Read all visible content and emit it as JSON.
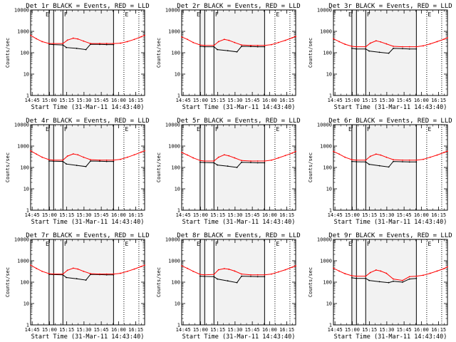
{
  "chart_data": [
    {
      "type": "line",
      "title": "Det 1r BLACK = Events, RED = LLD",
      "xlabel": "Start Time (31-Mar-11 14:43:40)",
      "ylabel": "Counts/sec",
      "x_ticks": [
        "14:45",
        "15:00",
        "15:15",
        "15:30",
        "15:45",
        "16:00",
        "16:15"
      ],
      "y_ticks": [
        "1",
        "10",
        "100",
        "1000",
        "10000"
      ],
      "ylim": [
        1,
        10000
      ],
      "y_scale": "log",
      "x_range_min": [
        0,
        99
      ],
      "vlines_solid_min": [
        16,
        20,
        28,
        72
      ],
      "vlines_dotted_min": [
        81,
        94
      ],
      "interval_marks": [
        "E",
        "F",
        "E"
      ],
      "grid": false,
      "legend": "title",
      "series": [
        {
          "name": "BLACK = Events",
          "color": "#000000",
          "x": [
            16,
            20,
            28,
            31,
            40,
            48,
            52,
            60,
            66,
            72
          ],
          "y": [
            250,
            240,
            230,
            175,
            160,
            140,
            250,
            245,
            240,
            240
          ]
        },
        {
          "name": "RED = LLD",
          "color": "#ff0000",
          "x": [
            0,
            5,
            10,
            16,
            20,
            28,
            32,
            37,
            41,
            46,
            52,
            60,
            66,
            72,
            78,
            84,
            90,
            96,
            99
          ],
          "y": [
            650,
            450,
            330,
            270,
            270,
            270,
            390,
            480,
            440,
            350,
            270,
            270,
            270,
            270,
            280,
            330,
            420,
            560,
            650
          ]
        }
      ]
    },
    {
      "type": "line",
      "title": "Det 2r BLACK = Events, RED = LLD",
      "xlabel": "Start Time (31-Mar-11 14:43:40)",
      "ylabel": "Counts/sec",
      "x_ticks": [
        "14:45",
        "15:00",
        "15:15",
        "15:30",
        "15:45",
        "16:00",
        "16:15"
      ],
      "y_ticks": [
        "1",
        "10",
        "100",
        "1000",
        "10000"
      ],
      "ylim": [
        1,
        10000
      ],
      "y_scale": "log",
      "x_range_min": [
        0,
        99
      ],
      "vlines_solid_min": [
        16,
        20,
        28,
        72
      ],
      "vlines_dotted_min": [
        81,
        94
      ],
      "interval_marks": [
        "E",
        "F",
        "E"
      ],
      "grid": false,
      "legend": "title",
      "series": [
        {
          "name": "BLACK = Events",
          "color": "#000000",
          "x": [
            16,
            20,
            28,
            31,
            40,
            48,
            52,
            60,
            66,
            72
          ],
          "y": [
            200,
            190,
            190,
            140,
            125,
            110,
            200,
            195,
            190,
            190
          ]
        },
        {
          "name": "RED = LLD",
          "color": "#ff0000",
          "x": [
            0,
            5,
            10,
            16,
            20,
            28,
            32,
            37,
            41,
            46,
            52,
            60,
            66,
            72,
            78,
            84,
            90,
            96,
            99
          ],
          "y": [
            550,
            420,
            300,
            230,
            220,
            220,
            330,
            420,
            380,
            300,
            230,
            220,
            220,
            220,
            240,
            300,
            380,
            500,
            580
          ]
        }
      ]
    },
    {
      "type": "line",
      "title": "Det 3r BLACK = Events, RED = LLD",
      "xlabel": "Start Time (31-Mar-11 14:43:40)",
      "ylabel": "Counts/sec",
      "x_ticks": [
        "14:45",
        "15:00",
        "15:15",
        "15:30",
        "15:45",
        "16:00",
        "16:15"
      ],
      "y_ticks": [
        "1",
        "10",
        "100",
        "1000",
        "10000"
      ],
      "ylim": [
        1,
        10000
      ],
      "y_scale": "log",
      "x_range_min": [
        0,
        99
      ],
      "vlines_solid_min": [
        16,
        20,
        28,
        72
      ],
      "vlines_dotted_min": [
        81,
        94
      ],
      "interval_marks": [
        "E",
        "F",
        "E"
      ],
      "grid": false,
      "legend": "title",
      "series": [
        {
          "name": "BLACK = Events",
          "color": "#000000",
          "x": [
            16,
            20,
            28,
            31,
            40,
            48,
            52,
            60,
            66,
            72
          ],
          "y": [
            160,
            150,
            150,
            120,
            105,
            95,
            160,
            155,
            150,
            150
          ]
        },
        {
          "name": "RED = LLD",
          "color": "#ff0000",
          "x": [
            0,
            5,
            10,
            16,
            20,
            28,
            32,
            37,
            41,
            46,
            52,
            60,
            66,
            72,
            78,
            84,
            90,
            96,
            99
          ],
          "y": [
            450,
            330,
            250,
            200,
            190,
            190,
            280,
            360,
            320,
            260,
            200,
            190,
            190,
            190,
            210,
            260,
            330,
            430,
            500
          ]
        }
      ]
    },
    {
      "type": "line",
      "title": "Det 4r BLACK = Events, RED = LLD",
      "xlabel": "Start Time (31-Mar-11 14:43:40)",
      "ylabel": "Counts/sec",
      "x_ticks": [
        "14:45",
        "15:00",
        "15:15",
        "15:30",
        "15:45",
        "16:00",
        "16:15"
      ],
      "y_ticks": [
        "1",
        "10",
        "100",
        "1000",
        "10000"
      ],
      "ylim": [
        1,
        10000
      ],
      "y_scale": "log",
      "x_range_min": [
        0,
        99
      ],
      "vlines_solid_min": [
        16,
        20,
        28,
        72
      ],
      "vlines_dotted_min": [
        81,
        94
      ],
      "interval_marks": [
        "E",
        "F",
        "E"
      ],
      "grid": false,
      "legend": "title",
      "series": [
        {
          "name": "BLACK = Events",
          "color": "#000000",
          "x": [
            16,
            20,
            28,
            31,
            40,
            48,
            52,
            60,
            66,
            72
          ],
          "y": [
            200,
            195,
            190,
            145,
            125,
            110,
            200,
            195,
            190,
            190
          ]
        },
        {
          "name": "RED = LLD",
          "color": "#ff0000",
          "x": [
            0,
            5,
            10,
            16,
            20,
            28,
            32,
            37,
            41,
            46,
            52,
            60,
            66,
            72,
            78,
            84,
            90,
            96,
            99
          ],
          "y": [
            600,
            420,
            300,
            230,
            220,
            220,
            340,
            430,
            390,
            300,
            230,
            220,
            220,
            220,
            240,
            300,
            390,
            520,
            600
          ]
        }
      ]
    },
    {
      "type": "line",
      "title": "Det 5r BLACK = Events, RED = LLD",
      "xlabel": "Start Time (31-Mar-11 14:43:40)",
      "ylabel": "Counts/sec",
      "x_ticks": [
        "14:45",
        "15:00",
        "15:15",
        "15:30",
        "15:45",
        "16:00",
        "16:15"
      ],
      "y_ticks": [
        "1",
        "10",
        "100",
        "1000",
        "10000"
      ],
      "ylim": [
        1,
        10000
      ],
      "y_scale": "log",
      "x_range_min": [
        0,
        99
      ],
      "vlines_solid_min": [
        16,
        20,
        28,
        72
      ],
      "vlines_dotted_min": [
        81,
        94
      ],
      "interval_marks": [
        "E",
        "F",
        "E"
      ],
      "grid": false,
      "legend": "title",
      "series": [
        {
          "name": "BLACK = Events",
          "color": "#000000",
          "x": [
            16,
            20,
            28,
            31,
            40,
            48,
            52,
            60,
            66,
            72
          ],
          "y": [
            175,
            170,
            165,
            130,
            115,
            100,
            175,
            170,
            165,
            165
          ]
        },
        {
          "name": "RED = LLD",
          "color": "#ff0000",
          "x": [
            0,
            5,
            10,
            16,
            20,
            28,
            32,
            37,
            41,
            46,
            52,
            60,
            66,
            72,
            78,
            84,
            90,
            96,
            99
          ],
          "y": [
            500,
            380,
            280,
            210,
            200,
            200,
            300,
            390,
            350,
            280,
            210,
            200,
            200,
            200,
            220,
            280,
            360,
            470,
            560
          ]
        }
      ]
    },
    {
      "type": "line",
      "title": "Det 6r BLACK = Events, RED = LLD",
      "xlabel": "Start Time (31-Mar-11 14:43:40)",
      "ylabel": "Counts/sec",
      "x_ticks": [
        "14:45",
        "15:00",
        "15:15",
        "15:30",
        "15:45",
        "16:00",
        "16:15"
      ],
      "y_ticks": [
        "1",
        "10",
        "100",
        "1000",
        "10000"
      ],
      "ylim": [
        1,
        10000
      ],
      "y_scale": "log",
      "x_range_min": [
        0,
        99
      ],
      "vlines_solid_min": [
        16,
        20,
        28,
        72
      ],
      "vlines_dotted_min": [
        81,
        94
      ],
      "interval_marks": [
        "E",
        "F",
        "E"
      ],
      "grid": false,
      "legend": "title",
      "series": [
        {
          "name": "BLACK = Events",
          "color": "#000000",
          "x": [
            16,
            20,
            28,
            31,
            40,
            48,
            52,
            60,
            66,
            72
          ],
          "y": [
            190,
            185,
            180,
            140,
            120,
            105,
            190,
            185,
            180,
            180
          ]
        },
        {
          "name": "RED = LLD",
          "color": "#ff0000",
          "x": [
            0,
            5,
            10,
            16,
            20,
            28,
            32,
            37,
            41,
            46,
            52,
            60,
            66,
            72,
            78,
            84,
            90,
            96,
            99
          ],
          "y": [
            560,
            420,
            300,
            230,
            220,
            220,
            330,
            420,
            380,
            300,
            230,
            220,
            220,
            220,
            240,
            300,
            380,
            500,
            580
          ]
        }
      ]
    },
    {
      "type": "line",
      "title": "Det 7r BLACK = Events, RED = LLD",
      "xlabel": "Start Time (31-Mar-11 14:43:40)",
      "ylabel": "Counts/sec",
      "x_ticks": [
        "14:45",
        "15:00",
        "15:15",
        "15:30",
        "15:45",
        "16:00",
        "16:15"
      ],
      "y_ticks": [
        "1",
        "10",
        "100",
        "1000",
        "10000"
      ],
      "ylim": [
        1,
        10000
      ],
      "y_scale": "log",
      "x_range_min": [
        0,
        99
      ],
      "vlines_solid_min": [
        16,
        20,
        28,
        72
      ],
      "vlines_dotted_min": [
        81,
        94
      ],
      "interval_marks": [
        "E",
        "F",
        "E"
      ],
      "grid": false,
      "legend": "title",
      "series": [
        {
          "name": "BLACK = Events",
          "color": "#000000",
          "x": [
            16,
            20,
            28,
            31,
            40,
            48,
            52,
            60,
            66,
            72
          ],
          "y": [
            230,
            225,
            220,
            165,
            145,
            125,
            230,
            225,
            220,
            220
          ]
        },
        {
          "name": "RED = LLD",
          "color": "#ff0000",
          "x": [
            0,
            5,
            10,
            16,
            20,
            28,
            32,
            37,
            41,
            46,
            52,
            60,
            66,
            72,
            78,
            84,
            90,
            96,
            99
          ],
          "y": [
            620,
            440,
            320,
            250,
            240,
            240,
            360,
            450,
            410,
            320,
            250,
            240,
            240,
            240,
            260,
            320,
            410,
            540,
            620
          ]
        }
      ]
    },
    {
      "type": "line",
      "title": "Det 8r BLACK = Events, RED = LLD",
      "xlabel": "Start Time (31-Mar-11 14:43:40)",
      "ylabel": "Counts/sec",
      "x_ticks": [
        "14:45",
        "15:00",
        "15:15",
        "15:30",
        "15:45",
        "16:00",
        "16:15"
      ],
      "y_ticks": [
        "1",
        "10",
        "100",
        "1000",
        "10000"
      ],
      "ylim": [
        1,
        10000
      ],
      "y_scale": "log",
      "x_range_min": [
        0,
        99
      ],
      "vlines_solid_min": [
        16,
        20,
        28,
        72
      ],
      "vlines_dotted_min": [
        81,
        94
      ],
      "interval_marks": [
        "E",
        "F",
        "E"
      ],
      "grid": false,
      "legend": "title",
      "series": [
        {
          "name": "BLACK = Events",
          "color": "#000000",
          "x": [
            16,
            20,
            28,
            31,
            40,
            48,
            52,
            60,
            66,
            72
          ],
          "y": [
            190,
            185,
            180,
            140,
            115,
            95,
            190,
            185,
            180,
            180
          ]
        },
        {
          "name": "RED = LLD",
          "color": "#ff0000",
          "x": [
            0,
            5,
            10,
            16,
            20,
            28,
            32,
            37,
            41,
            46,
            52,
            60,
            66,
            72,
            78,
            84,
            90,
            96,
            99
          ],
          "y": [
            580,
            440,
            320,
            230,
            220,
            230,
            380,
            430,
            400,
            330,
            240,
            220,
            220,
            220,
            240,
            300,
            380,
            500,
            580
          ]
        }
      ]
    },
    {
      "type": "line",
      "title": "Det 9r BLACK = Events, RED = LLD",
      "xlabel": "Start Time (31-Mar-11 14:43:40)",
      "ylabel": "Counts/sec",
      "x_ticks": [
        "14:45",
        "15:00",
        "15:15",
        "15:30",
        "15:45",
        "16:00",
        "16:15"
      ],
      "y_ticks": [
        "1",
        "10",
        "100",
        "1000",
        "10000"
      ],
      "ylim": [
        1,
        10000
      ],
      "y_scale": "log",
      "x_range_min": [
        0,
        99
      ],
      "vlines_solid_min": [
        16,
        20,
        28,
        72
      ],
      "vlines_dotted_min": [
        81,
        94
      ],
      "interval_marks": [
        "E",
        "F",
        "E"
      ],
      "grid": false,
      "legend": "title",
      "series": [
        {
          "name": "BLACK = Events",
          "color": "#000000",
          "x": [
            16,
            20,
            28,
            31,
            40,
            48,
            52,
            60,
            66,
            72
          ],
          "y": [
            160,
            150,
            150,
            120,
            105,
            95,
            110,
            100,
            140,
            150
          ]
        },
        {
          "name": "RED = LLD",
          "color": "#ff0000",
          "x": [
            0,
            5,
            10,
            16,
            20,
            28,
            32,
            37,
            41,
            46,
            52,
            60,
            66,
            72,
            78,
            84,
            90,
            96,
            99
          ],
          "y": [
            450,
            330,
            250,
            200,
            190,
            190,
            280,
            370,
            330,
            260,
            140,
            120,
            180,
            190,
            210,
            260,
            330,
            430,
            520
          ]
        }
      ]
    }
  ]
}
